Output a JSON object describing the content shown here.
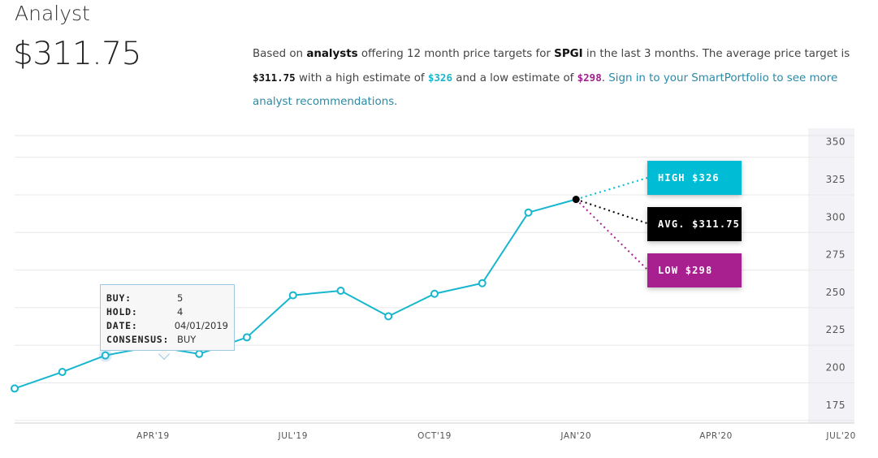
{
  "header": {
    "title": "Analyst",
    "price": "$311.75"
  },
  "description": {
    "t1": "Based on ",
    "analysts": "analysts",
    "t2": " offering 12 month price targets for ",
    "ticker": "SPGI",
    "t3": " in the last 3 months. The average price target is ",
    "avg": "$311.75",
    "t4": " with a high estimate of ",
    "high": "$326",
    "t5": " and a low estimate of ",
    "low": "$298",
    "t6": ". ",
    "link": "Sign in to your SmartPortfolio to see more analyst recommendations."
  },
  "tooltip": {
    "buy_label": "BUY:",
    "buy_value": "5",
    "hold_label": "HOLD:",
    "hold_value": "4",
    "date_label": "DATE:",
    "date_value": "04/01/2019",
    "consensus_label": "CONSENSUS:",
    "consensus_value": "BUY"
  },
  "targets": {
    "high_label": "HIGH $326",
    "avg_label": "AVG. $311.75",
    "low_label": "LOW $298"
  },
  "colors": {
    "line": "#17b6cf",
    "high": "#00bcd4",
    "avg": "#000000",
    "low": "#a8208f"
  },
  "chart_data": {
    "type": "line",
    "x_tick_labels": [
      "APR'19",
      "JUL'19",
      "OCT'19",
      "JAN'20",
      "APR'20",
      "JUL'20"
    ],
    "y_ticks": [
      175,
      200,
      225,
      250,
      275,
      300,
      325,
      350
    ],
    "ylim": [
      163,
      359
    ],
    "series": [
      {
        "x": [
          "2019-01-01",
          "2019-02-01",
          "2019-03-01",
          "2019-04-01",
          "2019-05-01",
          "2019-06-01",
          "2019-07-01",
          "2019-08-01",
          "2019-09-01",
          "2019-10-01",
          "2019-11-01",
          "2019-12-01",
          "2020-01-01"
        ],
        "values": [
          186,
          197,
          208,
          214,
          209,
          220,
          248,
          251,
          234,
          249,
          256,
          303,
          311.75
        ]
      }
    ],
    "projections": [
      {
        "label": "HIGH",
        "value": 326
      },
      {
        "label": "AVG.",
        "value": 311.75
      },
      {
        "label": "LOW",
        "value": 298
      }
    ],
    "grid": true,
    "axis_position": "right"
  }
}
